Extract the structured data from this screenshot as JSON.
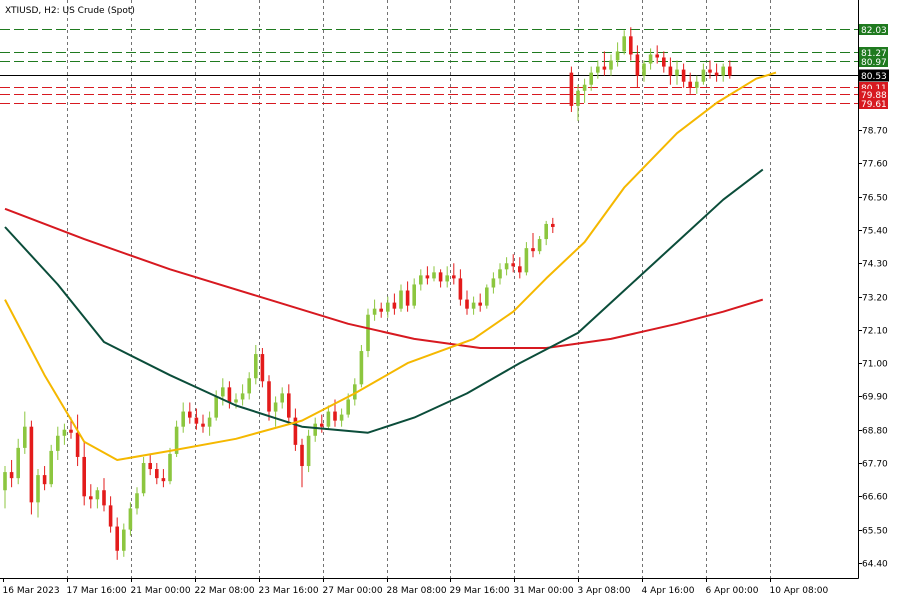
{
  "chart_data": {
    "type": "candlestick",
    "title": "XTIUSD, H2:  US Crude (Spot)",
    "symbol": "XTIUSD",
    "timeframe": "H2",
    "instrument": "US Crude (Spot)",
    "ylim": [
      63.9,
      83.0
    ],
    "y_ticks": [
      "64.40",
      "65.50",
      "66.60",
      "67.70",
      "68.80",
      "69.90",
      "71.00",
      "72.10",
      "73.20",
      "74.30",
      "75.40",
      "76.50",
      "77.60",
      "78.70"
    ],
    "x_ticks": [
      "16 Mar 2023",
      "17 Mar 16:00",
      "21 Mar 00:00",
      "22 Mar 08:00",
      "23 Mar 16:00",
      "27 Mar 00:00",
      "28 Mar 08:00",
      "29 Mar 16:00",
      "31 Mar 00:00",
      "3 Apr 08:00",
      "4 Apr 16:00",
      "6 Apr 00:00",
      "10 Apr 08:00"
    ],
    "grid": {
      "vertical": true,
      "horizontal": false
    },
    "colors": {
      "bull": "#8cc63f",
      "bear": "#e31b1b",
      "ma_fast": "#f5b800",
      "ma_mid": "#0b4d3a",
      "ma_slow": "#d71920",
      "level_green": "#1f7a1f",
      "level_red": "#d71920",
      "current": "#000000"
    },
    "current_price": {
      "label": "80.53",
      "value": 80.53
    },
    "levels_green": [
      {
        "label": "82.03",
        "value": 82.03
      },
      {
        "label": "81.27",
        "value": 81.27
      },
      {
        "label": "80.97",
        "value": 80.97
      }
    ],
    "levels_red": [
      {
        "label": "80.11",
        "value": 80.11
      },
      {
        "label": "79.88",
        "value": 79.88
      },
      {
        "label": "79.61",
        "value": 79.61
      }
    ],
    "candles": [
      [
        66.8,
        67.6,
        66.2,
        67.4
      ],
      [
        67.4,
        67.8,
        66.9,
        67.2
      ],
      [
        67.2,
        68.5,
        67.0,
        68.2
      ],
      [
        68.2,
        69.4,
        68.0,
        68.9
      ],
      [
        68.9,
        69.1,
        66.0,
        66.4
      ],
      [
        66.4,
        67.5,
        65.9,
        67.3
      ],
      [
        67.3,
        67.6,
        66.8,
        67.0
      ],
      [
        67.0,
        68.3,
        66.9,
        68.1
      ],
      [
        68.1,
        68.9,
        67.8,
        68.6
      ],
      [
        68.6,
        69.0,
        68.3,
        68.8
      ],
      [
        68.8,
        69.2,
        68.5,
        68.7
      ],
      [
        68.7,
        69.3,
        67.6,
        67.9
      ],
      [
        67.9,
        68.4,
        66.3,
        66.6
      ],
      [
        66.6,
        67.0,
        66.2,
        66.5
      ],
      [
        66.5,
        66.9,
        66.2,
        66.8
      ],
      [
        66.8,
        67.2,
        66.1,
        66.3
      ],
      [
        66.3,
        66.6,
        65.4,
        65.6
      ],
      [
        65.6,
        65.9,
        64.5,
        64.8
      ],
      [
        64.8,
        65.7,
        64.6,
        65.5
      ],
      [
        65.5,
        66.4,
        65.3,
        66.2
      ],
      [
        66.2,
        66.9,
        66.0,
        66.7
      ],
      [
        66.7,
        67.9,
        66.6,
        67.7
      ],
      [
        67.7,
        68.0,
        67.3,
        67.5
      ],
      [
        67.5,
        67.7,
        67.0,
        67.2
      ],
      [
        67.2,
        67.5,
        66.9,
        67.1
      ],
      [
        67.1,
        68.2,
        67.0,
        68.0
      ],
      [
        68.0,
        69.1,
        67.9,
        68.9
      ],
      [
        68.9,
        69.7,
        68.7,
        69.4
      ],
      [
        69.4,
        69.7,
        69.0,
        69.2
      ],
      [
        69.2,
        69.5,
        68.8,
        69.0
      ],
      [
        69.0,
        69.3,
        68.7,
        68.9
      ],
      [
        68.9,
        69.4,
        68.6,
        69.2
      ],
      [
        69.2,
        70.1,
        69.1,
        69.9
      ],
      [
        69.9,
        70.5,
        69.6,
        70.2
      ],
      [
        70.2,
        70.4,
        69.5,
        69.7
      ],
      [
        69.7,
        70.0,
        69.5,
        69.8
      ],
      [
        69.8,
        70.3,
        69.6,
        70.0
      ],
      [
        70.0,
        70.7,
        69.8,
        70.5
      ],
      [
        70.5,
        71.6,
        70.3,
        71.3
      ],
      [
        71.3,
        71.5,
        70.2,
        70.4
      ],
      [
        70.4,
        70.6,
        69.1,
        69.4
      ],
      [
        69.4,
        69.9,
        68.9,
        69.7
      ],
      [
        69.7,
        70.2,
        69.5,
        70.0
      ],
      [
        70.0,
        70.3,
        69.0,
        69.2
      ],
      [
        69.2,
        69.5,
        68.1,
        68.3
      ],
      [
        68.3,
        68.5,
        66.9,
        67.6
      ],
      [
        67.6,
        68.8,
        67.4,
        68.6
      ],
      [
        68.6,
        69.2,
        68.4,
        69.0
      ],
      [
        69.0,
        69.3,
        68.7,
        68.9
      ],
      [
        68.9,
        69.6,
        68.8,
        69.4
      ],
      [
        69.4,
        69.8,
        68.9,
        69.1
      ],
      [
        69.1,
        69.5,
        68.9,
        69.3
      ],
      [
        69.3,
        70.0,
        69.2,
        69.8
      ],
      [
        69.8,
        70.5,
        69.6,
        70.3
      ],
      [
        70.3,
        71.6,
        70.2,
        71.4
      ],
      [
        71.4,
        72.8,
        71.2,
        72.6
      ],
      [
        72.6,
        73.1,
        72.4,
        72.8
      ],
      [
        72.8,
        73.0,
        72.5,
        72.7
      ],
      [
        72.7,
        73.2,
        72.5,
        73.0
      ],
      [
        73.0,
        73.3,
        72.6,
        72.8
      ],
      [
        72.8,
        73.6,
        72.7,
        73.4
      ],
      [
        73.4,
        73.7,
        72.7,
        72.9
      ],
      [
        72.9,
        73.8,
        72.8,
        73.6
      ],
      [
        73.6,
        74.1,
        73.4,
        73.9
      ],
      [
        73.9,
        74.2,
        73.6,
        73.8
      ],
      [
        73.8,
        74.2,
        73.7,
        74.0
      ],
      [
        74.0,
        74.1,
        73.5,
        73.7
      ],
      [
        73.7,
        74.2,
        73.5,
        73.9
      ],
      [
        73.9,
        74.3,
        73.6,
        73.8
      ],
      [
        73.8,
        74.1,
        72.9,
        73.1
      ],
      [
        73.1,
        73.4,
        72.6,
        72.8
      ],
      [
        72.8,
        73.2,
        72.6,
        73.0
      ],
      [
        73.0,
        73.3,
        72.7,
        72.9
      ],
      [
        72.9,
        73.6,
        72.8,
        73.5
      ],
      [
        73.5,
        74.0,
        73.3,
        73.8
      ],
      [
        73.8,
        74.3,
        73.6,
        74.1
      ],
      [
        74.1,
        74.5,
        73.9,
        74.3
      ],
      [
        74.3,
        74.6,
        74.0,
        74.2
      ],
      [
        74.2,
        74.5,
        73.8,
        74.0
      ],
      [
        74.0,
        75.0,
        73.9,
        74.8
      ],
      [
        74.8,
        75.3,
        74.5,
        74.7
      ],
      [
        74.7,
        75.2,
        74.6,
        75.1
      ],
      [
        75.1,
        75.7,
        74.9,
        75.6
      ],
      [
        75.6,
        75.8,
        75.3,
        75.5
      ],
      [
        80.6,
        80.8,
        79.3,
        79.5
      ],
      [
        79.5,
        80.2,
        79.0,
        80.0
      ],
      [
        80.0,
        80.4,
        79.6,
        80.2
      ],
      [
        80.2,
        80.8,
        80.0,
        80.6
      ],
      [
        80.6,
        81.0,
        80.4,
        80.8
      ],
      [
        80.8,
        81.3,
        80.5,
        80.7
      ],
      [
        80.7,
        81.2,
        80.5,
        81.0
      ],
      [
        81.0,
        81.6,
        80.8,
        81.3
      ],
      [
        81.3,
        82.0,
        81.2,
        81.8
      ],
      [
        81.8,
        82.1,
        81.0,
        81.2
      ],
      [
        81.2,
        81.5,
        80.1,
        80.5
      ],
      [
        80.5,
        81.0,
        80.3,
        80.9
      ],
      [
        80.9,
        81.4,
        80.7,
        81.2
      ],
      [
        81.2,
        81.5,
        80.9,
        81.1
      ],
      [
        81.1,
        81.3,
        80.6,
        80.8
      ],
      [
        80.8,
        81.1,
        80.2,
        80.5
      ],
      [
        80.5,
        81.0,
        80.2,
        80.7
      ],
      [
        80.7,
        80.9,
        80.1,
        80.3
      ],
      [
        80.3,
        80.6,
        79.9,
        80.1
      ],
      [
        80.1,
        80.5,
        79.9,
        80.3
      ],
      [
        80.3,
        80.9,
        80.2,
        80.7
      ],
      [
        80.7,
        81.0,
        80.4,
        80.6
      ],
      [
        80.6,
        80.9,
        80.3,
        80.5
      ],
      [
        80.5,
        80.9,
        80.3,
        80.8
      ],
      [
        80.8,
        81.0,
        80.4,
        80.5
      ]
    ],
    "ma_fast": [
      [
        0,
        73.1
      ],
      [
        6,
        70.6
      ],
      [
        12,
        68.4
      ],
      [
        17,
        67.8
      ],
      [
        25,
        68.1
      ],
      [
        35,
        68.5
      ],
      [
        45,
        69.1
      ],
      [
        53,
        70.0
      ],
      [
        61,
        71.0
      ],
      [
        71,
        71.8
      ],
      [
        77,
        72.7
      ],
      [
        82,
        73.8
      ],
      [
        86,
        75.0
      ],
      [
        92,
        76.8
      ],
      [
        100,
        78.6
      ],
      [
        106,
        79.6
      ],
      [
        112,
        80.4
      ],
      [
        115,
        80.6
      ]
    ],
    "ma_mid": [
      [
        0,
        75.5
      ],
      [
        8,
        73.6
      ],
      [
        15,
        71.7
      ],
      [
        25,
        70.6
      ],
      [
        35,
        69.6
      ],
      [
        45,
        68.9
      ],
      [
        55,
        68.7
      ],
      [
        62,
        69.2
      ],
      [
        70,
        70.0
      ],
      [
        78,
        71.0
      ],
      [
        85,
        72.0
      ],
      [
        92,
        73.4
      ],
      [
        100,
        75.0
      ],
      [
        107,
        76.4
      ],
      [
        113,
        77.4
      ]
    ],
    "ma_slow": [
      [
        0,
        76.1
      ],
      [
        12,
        75.1
      ],
      [
        25,
        74.1
      ],
      [
        40,
        73.1
      ],
      [
        52,
        72.3
      ],
      [
        62,
        71.8
      ],
      [
        72,
        71.5
      ],
      [
        82,
        71.5
      ],
      [
        90,
        71.8
      ],
      [
        100,
        72.3
      ],
      [
        107,
        72.7
      ],
      [
        113,
        73.1
      ]
    ]
  }
}
